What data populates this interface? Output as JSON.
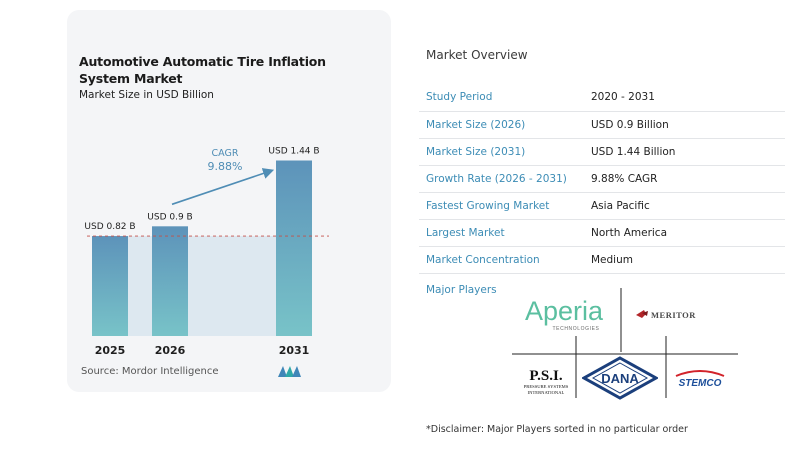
{
  "chart_card": {
    "title": "Automotive Automatic Tire Inflation System Market",
    "subtitle": "Market Size in USD Billion",
    "source": "Source:  Mordor Intelligence"
  },
  "chart_data": {
    "type": "bar",
    "categories": [
      "2025",
      "2026",
      "2031"
    ],
    "values": [
      0.82,
      0.9,
      1.44
    ],
    "value_labels": [
      "USD 0.82 B",
      "USD 0.9 B",
      "USD 1.44 B"
    ],
    "ylim": [
      0,
      1.6
    ],
    "cagr_label": "CAGR",
    "cagr_value": "9.88%",
    "colors": {
      "bar_top": "#5d93ba",
      "bar_bottom": "#78c3c8",
      "shade": "#dde8f0",
      "arrow": "#4f8db5"
    }
  },
  "overview": {
    "title": "Market Overview",
    "rows": [
      {
        "key": "Study Period",
        "value": "2020 - 2031"
      },
      {
        "key": "Market Size (2026)",
        "value": "USD 0.9 Billion"
      },
      {
        "key": "Market Size (2031)",
        "value": "USD 1.44 Billion"
      },
      {
        "key": "Growth Rate (2026 - 2031)",
        "value": "9.88% CAGR"
      },
      {
        "key": "Fastest Growing Market",
        "value": "Asia Pacific"
      },
      {
        "key": "Largest Market",
        "value": "North America"
      },
      {
        "key": "Market Concentration",
        "value": "Medium"
      }
    ],
    "major_players_label": "Major Players",
    "players": {
      "aperia": "Aperia",
      "aperia_sub": "TECHNOLOGIES",
      "meritor": "MERITOR",
      "psi": "P.S.I.",
      "psi_sub1": "PRESSURE SYSTEMS",
      "psi_sub2": "INTERNATIONAL",
      "dana": "DANA",
      "stemco": "STEMCO"
    },
    "disclaimer": "*Disclaimer: Major Players sorted in no particular order"
  }
}
